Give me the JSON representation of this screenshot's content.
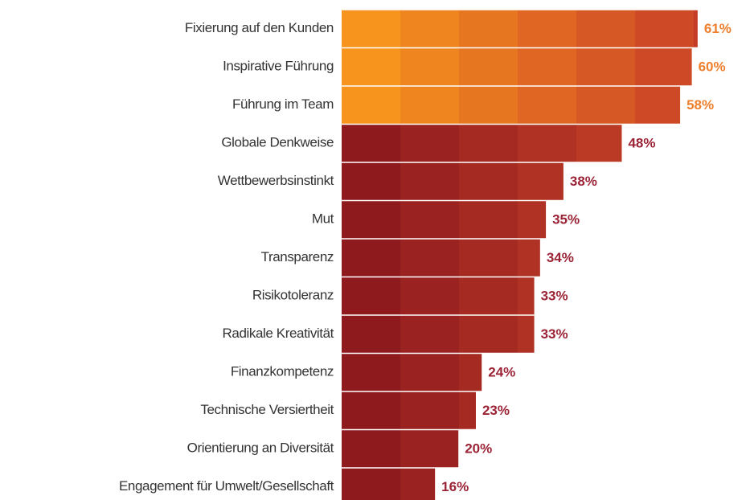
{
  "chart_data": {
    "type": "bar",
    "orientation": "horizontal",
    "categories": [
      "Fixierung auf den Kunden",
      "Inspirative Führung",
      "Führung im Team",
      "Globale Denkweise",
      "Wettbewerbsinstinkt",
      "Mut",
      "Transparenz",
      "Risikotoleranz",
      "Radikale Kreativität",
      "Finanzkompetenz",
      "Technische Versiertheit",
      "Orientierung an Diversität",
      "Engagement für Umwelt/Gesellschaft"
    ],
    "values": [
      61,
      60,
      58,
      48,
      38,
      35,
      34,
      33,
      33,
      24,
      23,
      20,
      16
    ],
    "value_labels": [
      "61%",
      "60%",
      "58%",
      "48%",
      "38%",
      "35%",
      "34%",
      "33%",
      "33%",
      "24%",
      "23%",
      "20%",
      "16%"
    ],
    "colors": [
      [
        "#f7941d",
        "#c63a28"
      ],
      [
        "#f7941d",
        "#c63a28"
      ],
      [
        "#f7941d",
        "#c63a28"
      ],
      [
        "#8f1a1e",
        "#cf4a2a"
      ],
      [
        "#8f1a1e",
        "#cf4a2a"
      ],
      [
        "#8f1a1e",
        "#cf4a2a"
      ],
      [
        "#8f1a1e",
        "#cf4a2a"
      ],
      [
        "#8f1a1e",
        "#cf4a2a"
      ],
      [
        "#8f1a1e",
        "#cf4a2a"
      ],
      [
        "#8f1a1e",
        "#cf4a2a"
      ],
      [
        "#8f1a1e",
        "#cf4a2a"
      ],
      [
        "#8f1a1e",
        "#cf4a2a"
      ],
      [
        "#8f1a1e",
        "#cf4a2a"
      ]
    ],
    "label_colors": [
      "#ee7f2d",
      "#ee7f2d",
      "#ee7f2d",
      "#9b2335",
      "#9b2335",
      "#9b2335",
      "#9b2335",
      "#9b2335",
      "#9b2335",
      "#9b2335",
      "#9b2335",
      "#9b2335",
      "#9b2335"
    ]
  }
}
